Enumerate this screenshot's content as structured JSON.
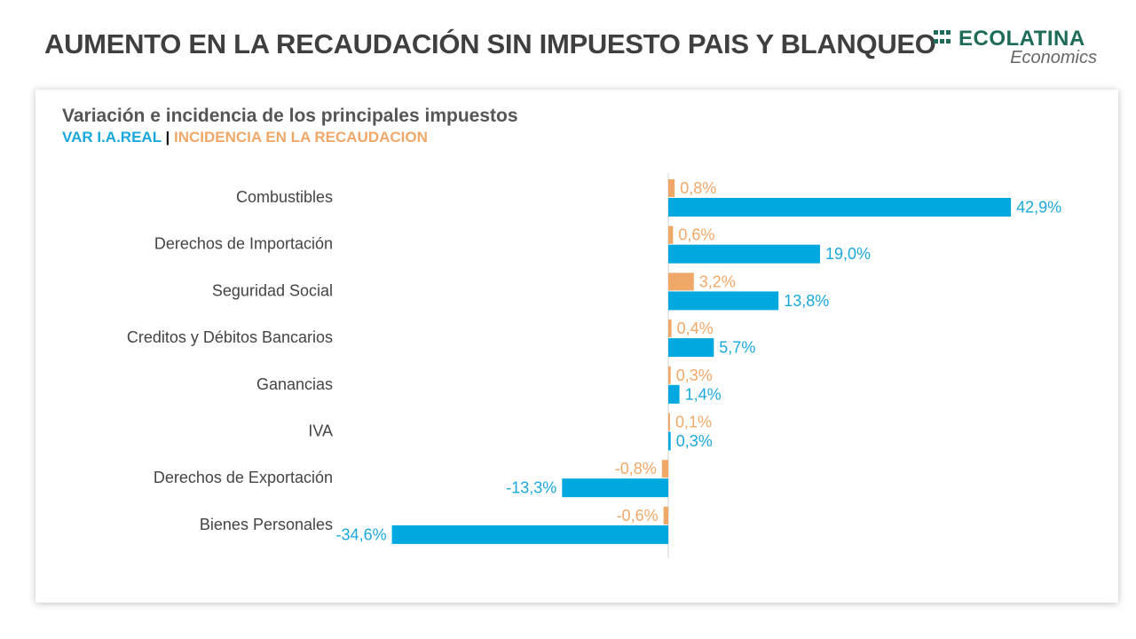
{
  "header": {
    "title": "AUMENTO EN LA RECAUDACIÓN SIN IMPUESTO PAIS Y BLANQUEO",
    "logo_main": "ECOLATINA",
    "logo_sub": "Economics"
  },
  "chart_data": {
    "type": "bar",
    "orientation": "horizontal",
    "title": "Variación e incidencia de los principales impuestos",
    "legend": {
      "series1": "VAR I.A.REAL",
      "separator": "|",
      "series2": "INCIDENCIA EN LA RECAUDACION",
      "placement": "top-left"
    },
    "categories": [
      "Combustibles",
      "Derechos de Importación",
      "Seguridad Social",
      "Creditos y Débitos Bancarios",
      "Ganancias",
      "IVA",
      "Derechos de Exportación",
      "Bienes Personales"
    ],
    "series": [
      {
        "name": "INCIDENCIA EN LA RECAUDACION",
        "color": "#f0a868",
        "values": [
          0.8,
          0.6,
          3.2,
          0.4,
          0.3,
          0.1,
          -0.8,
          -0.6
        ],
        "labels": [
          "0,8%",
          "0,6%",
          "3,2%",
          "0,4%",
          "0,3%",
          "0,1%",
          "-0,8%",
          "-0,6%"
        ]
      },
      {
        "name": "VAR I.A.REAL",
        "color": "#00a8e0",
        "values": [
          42.9,
          19.0,
          13.8,
          5.7,
          1.4,
          0.3,
          -13.3,
          -34.6
        ],
        "labels": [
          "42,9%",
          "19,0%",
          "13,8%",
          "5,7%",
          "1,4%",
          "0,3%",
          "-13,3%",
          "-34,6%"
        ]
      }
    ],
    "grid": false
  }
}
